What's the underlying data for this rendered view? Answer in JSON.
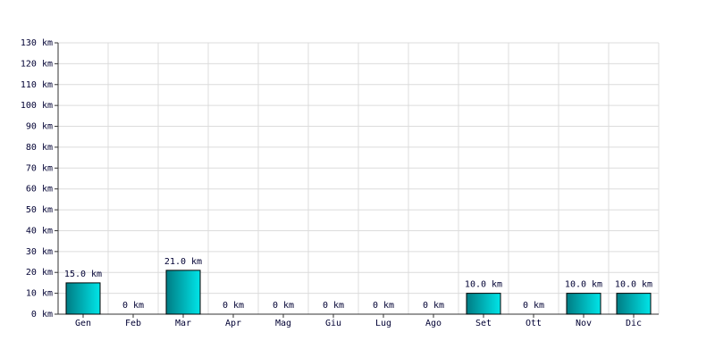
{
  "chart_data": {
    "type": "bar",
    "categories": [
      "Gen",
      "Feb",
      "Mar",
      "Apr",
      "Mag",
      "Giu",
      "Lug",
      "Ago",
      "Set",
      "Ott",
      "Nov",
      "Dic"
    ],
    "values": [
      15,
      0,
      21,
      0,
      0,
      0,
      0,
      0,
      10,
      0,
      10,
      10
    ],
    "value_labels": [
      "15.0 km",
      "0 km",
      "21.0 km",
      "0 km",
      "0 km",
      "0 km",
      "0 km",
      "0 km",
      "10.0 km",
      "0 km",
      "10.0 km",
      "10.0 km"
    ],
    "color": "#00e5e8",
    "ylim": [
      0,
      130
    ],
    "yticks": [
      {
        "value": 0,
        "label": "0 km"
      },
      {
        "value": 10,
        "label": "10 km"
      },
      {
        "value": 20,
        "label": "20 km"
      },
      {
        "value": 30,
        "label": "30 km"
      },
      {
        "value": 40,
        "label": "40 km"
      },
      {
        "value": 50,
        "label": "50 km"
      },
      {
        "value": 60,
        "label": "60 km"
      },
      {
        "value": 70,
        "label": "70 km"
      },
      {
        "value": 80,
        "label": "80 km"
      },
      {
        "value": 90,
        "label": "90 km"
      },
      {
        "value": 100,
        "label": "100 km"
      },
      {
        "value": 110,
        "label": "110 km"
      },
      {
        "value": 120,
        "label": "120 km"
      },
      {
        "value": 130,
        "label": "130 km"
      }
    ],
    "grid": true
  }
}
